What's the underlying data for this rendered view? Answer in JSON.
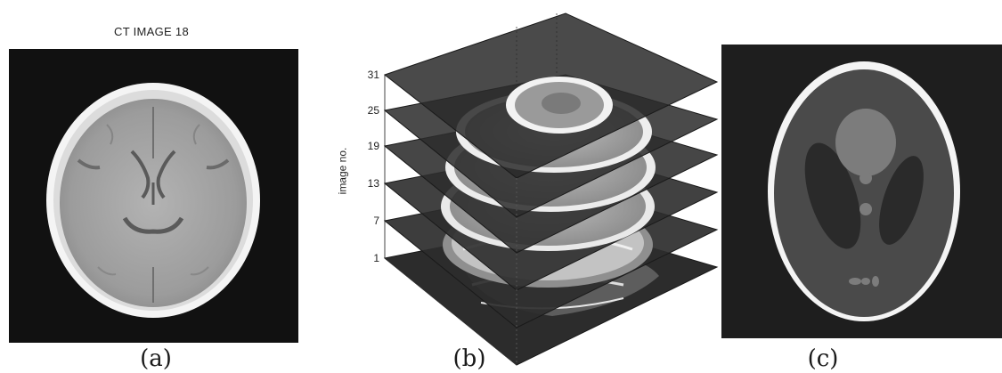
{
  "panels": {
    "a": {
      "title": "CT IMAGE 18",
      "caption": "(a)"
    },
    "b": {
      "caption": "(b)",
      "ylabel": "image no.",
      "ticks": [
        "31",
        "25",
        "19",
        "13",
        "7",
        "1"
      ]
    },
    "c": {
      "caption": "(c)"
    }
  },
  "colors": {
    "background": "#ffffff",
    "image_black": "#111111",
    "skull": "#f4f4f4",
    "brain": "#a8a8a8",
    "slice_plane": "#2c2c2c",
    "phantom_body": "#4a4a4a",
    "phantom_light": "#7c7c7c"
  },
  "icons": [
    "ct-brain-slice-image",
    "stacked-ct-slices-3d-plot",
    "shepp-logan-phantom-image"
  ]
}
